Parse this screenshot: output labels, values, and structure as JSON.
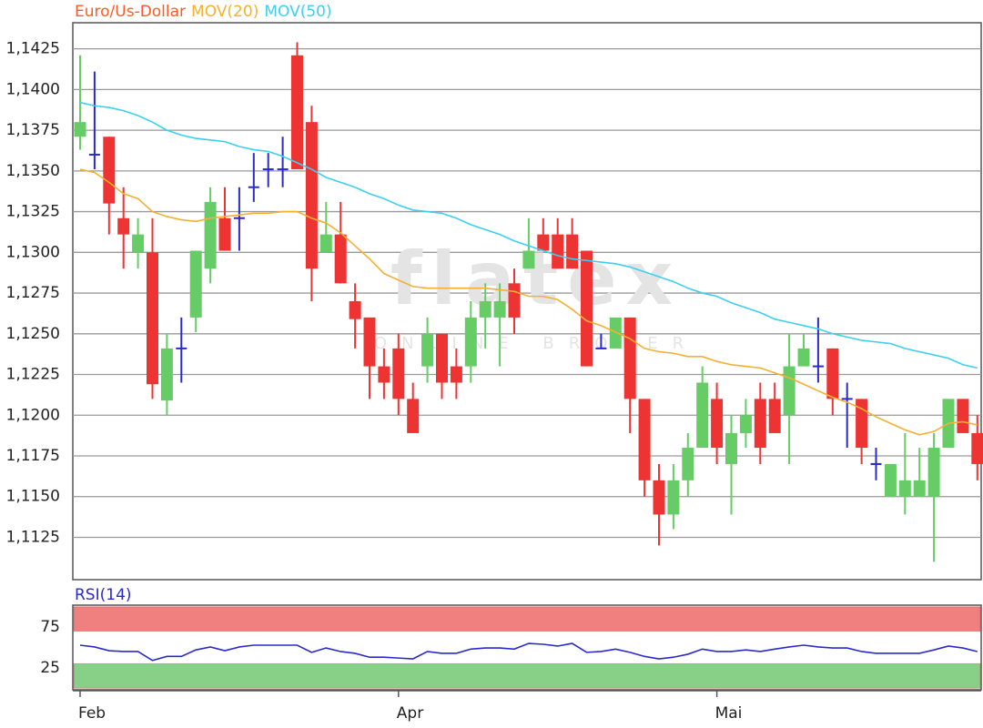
{
  "chart_data": [
    {
      "type": "candlestick",
      "watermark": "flatex",
      "watermark_sub": "ONLINE BROKER",
      "ylim": [
        1.1099,
        1.1441
      ],
      "yticks": [
        {
          "value": 1.1125,
          "label": "1,1125"
        },
        {
          "value": 1.115,
          "label": "1,1150"
        },
        {
          "value": 1.1175,
          "label": "1,1175"
        },
        {
          "value": 1.12,
          "label": "1,1200"
        },
        {
          "value": 1.1225,
          "label": "1,1225"
        },
        {
          "value": 1.125,
          "label": "1,1250"
        },
        {
          "value": 1.1275,
          "label": "1,1275"
        },
        {
          "value": 1.13,
          "label": "1,1300"
        },
        {
          "value": 1.1325,
          "label": "1,1325"
        },
        {
          "value": 1.135,
          "label": "1,1350"
        },
        {
          "value": 1.1375,
          "label": "1,1375"
        },
        {
          "value": 1.14,
          "label": "1,1400"
        },
        {
          "value": 1.1425,
          "label": "1,1425"
        }
      ],
      "grid": true,
      "series": [
        {
          "name": "Euro/Us-Dollar",
          "color": "#ff5a22",
          "up_color": "#66cc66",
          "down_color": "#ee3333",
          "doji_color": "#2a2acc",
          "open": [
            1.1371,
            1.136,
            1.1371,
            1.1321,
            1.13,
            1.13,
            1.1209,
            1.1241,
            1.126,
            1.129,
            1.1321,
            1.1321,
            1.134,
            1.1351,
            1.1351,
            1.1421,
            1.138,
            1.13,
            1.1311,
            1.127,
            1.126,
            1.123,
            1.1241,
            1.121,
            1.123,
            1.125,
            1.123,
            1.123,
            1.126,
            1.126,
            1.1281,
            1.129,
            1.1311,
            1.1311,
            1.1311,
            1.1301,
            1.1241,
            1.1241,
            1.126,
            1.121,
            1.116,
            1.1139,
            1.116,
            1.118,
            1.121,
            1.117,
            1.1189,
            1.121,
            1.121,
            1.12,
            1.123,
            1.123,
            1.1241,
            1.121,
            1.121,
            1.117,
            1.115,
            1.115,
            1.115,
            1.115,
            1.118,
            1.121,
            1.1189
          ],
          "high": [
            1.1421,
            1.1411,
            1.1371,
            1.134,
            1.1321,
            1.1321,
            1.125,
            1.126,
            1.1301,
            1.134,
            1.134,
            1.134,
            1.1361,
            1.1361,
            1.1371,
            1.1429,
            1.139,
            1.1331,
            1.1331,
            1.1281,
            1.126,
            1.1241,
            1.125,
            1.122,
            1.126,
            1.125,
            1.1241,
            1.127,
            1.1281,
            1.1281,
            1.129,
            1.1321,
            1.1321,
            1.1321,
            1.1321,
            1.1301,
            1.125,
            1.126,
            1.126,
            1.121,
            1.117,
            1.117,
            1.1189,
            1.123,
            1.122,
            1.12,
            1.121,
            1.122,
            1.122,
            1.125,
            1.125,
            1.126,
            1.1241,
            1.122,
            1.121,
            1.118,
            1.117,
            1.1189,
            1.118,
            1.1189,
            1.121,
            1.121,
            1.12
          ],
          "low": [
            1.1363,
            1.1351,
            1.1311,
            1.129,
            1.129,
            1.121,
            1.12,
            1.122,
            1.1251,
            1.1281,
            1.1301,
            1.1301,
            1.1331,
            1.134,
            1.134,
            1.1351,
            1.127,
            1.13,
            1.1281,
            1.1241,
            1.121,
            1.121,
            1.12,
            1.1189,
            1.122,
            1.121,
            1.121,
            1.122,
            1.1241,
            1.123,
            1.125,
            1.129,
            1.1301,
            1.129,
            1.129,
            1.123,
            1.1241,
            1.1241,
            1.1189,
            1.115,
            1.112,
            1.113,
            1.115,
            1.118,
            1.117,
            1.1139,
            1.118,
            1.117,
            1.1189,
            1.117,
            1.123,
            1.122,
            1.12,
            1.118,
            1.117,
            1.116,
            1.115,
            1.1139,
            1.115,
            1.111,
            1.118,
            1.1189,
            1.116
          ],
          "close": [
            1.138,
            1.136,
            1.133,
            1.1311,
            1.1311,
            1.1219,
            1.1241,
            1.1241,
            1.1301,
            1.1331,
            1.1301,
            1.1321,
            1.134,
            1.1351,
            1.1351,
            1.1351,
            1.129,
            1.1311,
            1.1281,
            1.1259,
            1.123,
            1.122,
            1.121,
            1.1189,
            1.125,
            1.122,
            1.122,
            1.126,
            1.127,
            1.127,
            1.126,
            1.1301,
            1.1301,
            1.129,
            1.129,
            1.123,
            1.1241,
            1.126,
            1.121,
            1.116,
            1.1139,
            1.116,
            1.118,
            1.122,
            1.118,
            1.1189,
            1.12,
            1.118,
            1.1189,
            1.123,
            1.1241,
            1.123,
            1.121,
            1.121,
            1.118,
            1.117,
            1.117,
            1.116,
            1.116,
            1.118,
            1.121,
            1.1189,
            1.117
          ]
        },
        {
          "name": "MOV(20)",
          "color": "#f5b030",
          "values": [
            1.1351,
            1.1349,
            1.1343,
            1.1336,
            1.1333,
            1.1325,
            1.1322,
            1.132,
            1.1319,
            1.1321,
            1.1322,
            1.1323,
            1.1324,
            1.1324,
            1.1325,
            1.1325,
            1.1321,
            1.1318,
            1.1312,
            1.1304,
            1.1296,
            1.1287,
            1.1283,
            1.1279,
            1.1278,
            1.1278,
            1.1278,
            1.1278,
            1.1278,
            1.1277,
            1.1276,
            1.1273,
            1.1273,
            1.1271,
            1.1265,
            1.1258,
            1.1255,
            1.1251,
            1.1247,
            1.1241,
            1.1239,
            1.1238,
            1.1236,
            1.1236,
            1.1233,
            1.1231,
            1.123,
            1.1229,
            1.1226,
            1.1223,
            1.1219,
            1.1215,
            1.1211,
            1.1208,
            1.1204,
            1.1199,
            1.1195,
            1.1191,
            1.1188,
            1.119,
            1.1195,
            1.1196,
            1.1194
          ]
        },
        {
          "name": "MOV(50)",
          "color": "#3cd0f0",
          "values": [
            1.1392,
            1.139,
            1.1389,
            1.1387,
            1.1384,
            1.138,
            1.1375,
            1.1372,
            1.137,
            1.1369,
            1.1368,
            1.1365,
            1.1363,
            1.1362,
            1.1359,
            1.1355,
            1.1351,
            1.1346,
            1.1343,
            1.134,
            1.1336,
            1.1333,
            1.1329,
            1.1326,
            1.1325,
            1.1324,
            1.1321,
            1.1317,
            1.1314,
            1.1311,
            1.1307,
            1.1304,
            1.1301,
            1.1298,
            1.1296,
            1.1295,
            1.1294,
            1.1293,
            1.1291,
            1.1288,
            1.1285,
            1.1282,
            1.1278,
            1.1275,
            1.1273,
            1.1269,
            1.1266,
            1.1263,
            1.1259,
            1.1257,
            1.1255,
            1.1253,
            1.125,
            1.1248,
            1.1246,
            1.1245,
            1.1244,
            1.1241,
            1.1239,
            1.1237,
            1.1235,
            1.1231,
            1.1229
          ]
        }
      ]
    },
    {
      "type": "line",
      "categories": [
        "Feb",
        null,
        null,
        null,
        null,
        null,
        null,
        null,
        null,
        null,
        null,
        null,
        null,
        null,
        null,
        null,
        null,
        null,
        null,
        null,
        null,
        null,
        "Apr",
        null,
        null,
        null,
        null,
        null,
        null,
        null,
        null,
        null,
        null,
        null,
        null,
        null,
        null,
        null,
        null,
        null,
        null,
        null,
        null,
        null,
        "Mai",
        null,
        null,
        null,
        null,
        null,
        null,
        null,
        null,
        null,
        null,
        null,
        null,
        null,
        null,
        null,
        null,
        null,
        null
      ],
      "ylim": [
        -2,
        102
      ],
      "yticks": [
        25,
        75
      ],
      "bands": [
        {
          "range": [
            70,
            100
          ],
          "color": "#f08080"
        },
        {
          "range": [
            0,
            30
          ],
          "color": "#88d088"
        }
      ],
      "series": [
        {
          "name": "RSI(14)",
          "color": "#2a2acc",
          "values": [
            52.8,
            50.6,
            46,
            45,
            45,
            34,
            39,
            39,
            47,
            50.6,
            46,
            50.6,
            52.8,
            52.8,
            52.8,
            52.8,
            44,
            49.4,
            45,
            42.8,
            38,
            38,
            37,
            36,
            45,
            42.8,
            42.8,
            48,
            49.4,
            49.4,
            48,
            55,
            53.9,
            51.7,
            55,
            44,
            45,
            48,
            44,
            39,
            36,
            38,
            41.7,
            48,
            45,
            45,
            47,
            45,
            48,
            50.6,
            52.8,
            50.6,
            49.4,
            49.4,
            45,
            42.8,
            42.8,
            42.8,
            42.8,
            47,
            51.7,
            49.4,
            45
          ]
        }
      ]
    }
  ]
}
